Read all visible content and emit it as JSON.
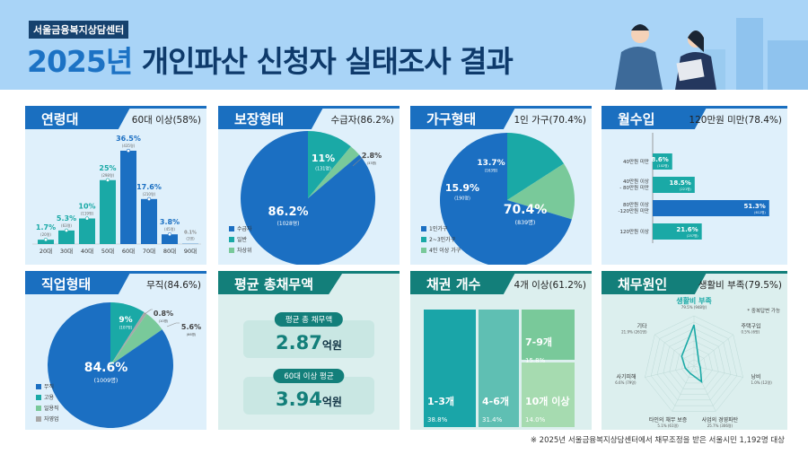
{
  "header": {
    "org": "서울금융복지상담센터",
    "title_year": "2025년",
    "title_rest": "개인파산 신청자 실태조사 결과"
  },
  "colors": {
    "blue": "#1b6fc2",
    "teal": "#1aa9a6",
    "green": "#79c99a",
    "gray": "#a8a8a8",
    "light_green": "#a6dbb0",
    "mid_teal": "#5fbfb3",
    "dark_teal": "#137f7a"
  },
  "panels": {
    "age": {
      "title": "연령대",
      "summary": "60대 이상(58%)"
    },
    "protection": {
      "title": "보장형태",
      "summary": "수급자(86.2%)"
    },
    "household": {
      "title": "가구형태",
      "summary": "1인 가구(70.4%)"
    },
    "income": {
      "title": "월수입",
      "summary": "120만원 미만(78.4%)"
    },
    "job": {
      "title": "직업형태",
      "summary": "무직(84.6%)"
    },
    "debt": {
      "title": "평균 총채무액",
      "items": [
        {
          "label": "평균 총 채무액",
          "value": "2.87",
          "unit": "억원"
        },
        {
          "label": "60대 이상 평균",
          "value": "3.94",
          "unit": "억원"
        }
      ]
    },
    "creditors": {
      "title": "채권 개수",
      "summary": "4개 이상(61.2%)"
    },
    "cause": {
      "title": "채무원인",
      "summary": "생활비 부족(79.5%)",
      "note": "* 중복답변 가능"
    }
  },
  "chart_data": [
    {
      "type": "bar",
      "id": "age",
      "categories": [
        "20대",
        "30대",
        "40대",
        "50대",
        "60대",
        "70대",
        "80대",
        "90대"
      ],
      "values": [
        1.7,
        5.3,
        10,
        25,
        36.5,
        17.6,
        3.8,
        0.1
      ],
      "labels": [
        "1.7%",
        "5.3%",
        "10%",
        "25%",
        "36.5%",
        "17.6%",
        "3.8%",
        "0.1%"
      ],
      "counts": [
        "(20명)",
        "(63명)",
        "(119명)",
        "(298명)",
        "(435명)",
        "(210명)",
        "(45명)",
        "(1명)"
      ]
    },
    {
      "type": "pie",
      "id": "protection",
      "categories": [
        "수급자",
        "일반",
        "차상위"
      ],
      "values": [
        86.2,
        11,
        2.8
      ],
      "labels": [
        "86.2%",
        "11%",
        "2.8%"
      ],
      "counts": [
        "(1028명)",
        "(131명)",
        "(33명)"
      ]
    },
    {
      "type": "pie",
      "id": "household",
      "categories": [
        "1인가구",
        "2~3인가구",
        "4인 이상 가구"
      ],
      "values": [
        70.4,
        15.9,
        13.7
      ],
      "labels": [
        "70.4%",
        "15.9%",
        "13.7%"
      ],
      "counts": [
        "(839명)",
        "(190명)",
        "(163명)"
      ]
    },
    {
      "type": "bar",
      "id": "income",
      "orientation": "horizontal",
      "categories": [
        "40만원 미만",
        "40만원 이상 - 80만원 미만",
        "80만원 이상 -120만원 미만",
        "120만원 이상"
      ],
      "values": [
        8.6,
        18.5,
        51.3,
        21.6
      ],
      "labels": [
        "8.6%",
        "18.5%",
        "51.3%",
        "21.6%"
      ],
      "counts": [
        "(102명)",
        "(221명)",
        "(612명)",
        "(257명)"
      ]
    },
    {
      "type": "pie",
      "id": "job",
      "categories": [
        "무직",
        "고용",
        "자영업",
        "일용직"
      ],
      "values": [
        84.6,
        9,
        0.8,
        5.6
      ],
      "labels": [
        "84.6%",
        "9%",
        "0.8%",
        "5.6%"
      ],
      "counts": [
        "(1009명)",
        "(107명)",
        "(10명)",
        "(66명)"
      ],
      "legend": [
        "무직",
        "고용",
        "일용직",
        "자영업"
      ]
    },
    {
      "type": "treemap",
      "id": "creditors",
      "categories": [
        "1-3개",
        "4-6개",
        "7-9개",
        "10개 이상"
      ],
      "values": [
        38.8,
        31.4,
        15.8,
        14.0
      ],
      "labels": [
        "38.8%",
        "31.4%",
        "15.8%",
        "14.0%"
      ]
    },
    {
      "type": "radar",
      "id": "cause",
      "categories": [
        "생활비 부족",
        "주택구입",
        "낭비",
        "사업의 경영파탄",
        "타인의 채무 보증",
        "사기피해",
        "기타"
      ],
      "values": [
        79.5,
        0.5,
        1.0,
        25.7,
        5.1,
        6.6,
        21.9
      ],
      "labels": [
        "79.5% (948명)",
        "0.5% (6명)",
        "1.0% (12명)",
        "25.7% (306명)",
        "5.1% (61명)",
        "6.6% (79명)",
        "21.9% (261명)"
      ]
    }
  ],
  "footnote": "※ 2025년 서울금융복지상담센터에서 채무조정을 받은 서울시민 1,192명 대상"
}
